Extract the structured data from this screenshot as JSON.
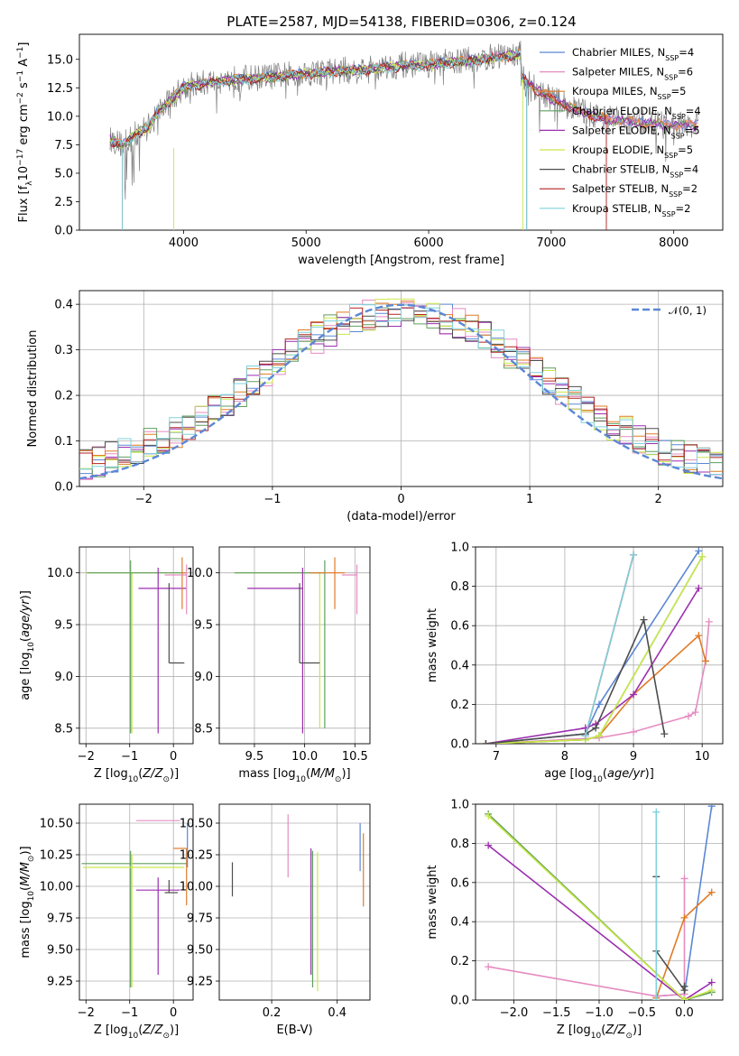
{
  "figure": {
    "title": "PLATE=2587, MJD=54138, FIBERID=0306, z=0.124"
  },
  "colors": {
    "Chabrier MILES": "#5b87d4",
    "Salpeter MILES": "#e58bc0",
    "Kroupa MILES": "#e07b27",
    "Chabrier ELODIE": "#5f9e5f",
    "Salpeter ELODIE": "#9c2fb0",
    "Kroupa ELODIE": "#c9e84a",
    "Chabrier STELIB": "#4d4d4d",
    "Salpeter STELIB": "#b22222",
    "Kroupa STELIB": "#7fd1dd",
    "gaussian": "#5b87d4",
    "grid": "#b0b0b0"
  },
  "chart_data": [
    {
      "id": "spectrum",
      "type": "line",
      "title": "PLATE=2587, MJD=54138, FIBERID=0306, z=0.124",
      "xlabel": "wavelength [Angstrom, rest frame]",
      "ylabel": "Flux [f_λ 10^-17 erg cm^-2 s^-1 A^-1]",
      "xlim": [
        3150,
        8400
      ],
      "ylim": [
        0,
        17.2
      ],
      "xticks": [
        4000,
        5000,
        6000,
        7000,
        8000
      ],
      "yticks": [
        0.0,
        2.5,
        5.0,
        7.5,
        10.0,
        12.5,
        15.0
      ],
      "grid": false,
      "legend_position": "top-right",
      "legend": [
        {
          "name": "Chabrier MILES",
          "nssp": "4"
        },
        {
          "name": "Salpeter MILES",
          "nssp": "6"
        },
        {
          "name": "Kroupa MILES",
          "nssp": "5"
        },
        {
          "name": "Chabrier ELODIE",
          "nssp": "4"
        },
        {
          "name": "Salpeter ELODIE",
          "nssp": "5"
        },
        {
          "name": "Kroupa ELODIE",
          "nssp": "5"
        },
        {
          "name": "Chabrier STELIB",
          "nssp": "4"
        },
        {
          "name": "Salpeter STELIB",
          "nssp": "2"
        },
        {
          "name": "Kroupa STELIB",
          "nssp": "2"
        }
      ],
      "data_continuum": {
        "x": [
          3400,
          3500,
          3600,
          3700,
          3800,
          3900,
          4000,
          4200,
          4400,
          4600,
          4800,
          5000,
          5200,
          5400,
          5600,
          5800,
          6000,
          6200,
          6400,
          6600,
          6750
        ],
        "y": [
          8.0,
          7.5,
          8.5,
          9.0,
          10.5,
          11.5,
          12.6,
          13.0,
          13.3,
          13.4,
          13.6,
          13.8,
          14.0,
          14.1,
          14.3,
          14.5,
          14.6,
          14.8,
          15.0,
          15.3,
          15.5
        ]
      },
      "red_model_tail": {
        "x": [
          6750,
          6900,
          7000,
          7200,
          7400,
          7600,
          7800,
          8000,
          8200
        ],
        "y": [
          13.5,
          12.3,
          11.6,
          10.6,
          9.9,
          9.6,
          9.4,
          9.3,
          9.2
        ]
      },
      "dropout_edges": {
        "Chabrier STELIB": [
          3500,
          6800
        ],
        "Salpeter STELIB": [
          3500,
          7450
        ],
        "Kroupa STELIB": [
          3500,
          6800
        ],
        "Kroupa ELODIE": [
          3920,
          6770
        ]
      }
    },
    {
      "id": "residuals",
      "type": "histogram",
      "xlabel": "(data-model)/error",
      "ylabel": "Normed distribution",
      "xlim": [
        -2.5,
        2.5
      ],
      "ylim": [
        0,
        0.43
      ],
      "xticks": [
        -2,
        -1,
        0,
        1,
        2
      ],
      "yticks": [
        0.0,
        0.1,
        0.2,
        0.3,
        0.4
      ],
      "grid": true,
      "legend_position": "top-right",
      "legend": [
        "𝒩(0, 1)"
      ],
      "bin_width": 0.1
    },
    {
      "id": "age_vs_Z",
      "type": "errorbar",
      "xlabel": "Z [log10(Z/Z⊙)]",
      "ylabel": "age [log10(age/yr)]",
      "xlim": [
        -2.15,
        0.45
      ],
      "ylim": [
        8.35,
        10.25
      ],
      "xticks": [
        -2,
        -1,
        0
      ],
      "yticks": [
        8.5,
        9.0,
        9.5,
        10.0
      ],
      "grid": true,
      "points": [
        {
          "series": "Kroupa ELODIE",
          "x": -0.95,
          "xerr": [
            1.05,
            1.25
          ],
          "y": 10.0,
          "yerr": [
            1.55,
            0.0
          ]
        },
        {
          "series": "Chabrier ELODIE",
          "x": -0.98,
          "xerr": [
            1.0,
            1.2
          ],
          "y": 10.0,
          "yerr": [
            1.55,
            0.12
          ]
        },
        {
          "series": "Salpeter ELODIE",
          "x": -0.35,
          "xerr": [
            0.45,
            0.65
          ],
          "y": 9.85,
          "yerr": [
            1.4,
            0.2
          ]
        },
        {
          "series": "Chabrier STELIB",
          "x": -0.1,
          "xerr": [
            0.0,
            0.35
          ],
          "y": 9.13,
          "yerr": [
            0.0,
            0.77
          ]
        },
        {
          "series": "Kroupa MILES",
          "x": 0.2,
          "xerr": [
            0.0,
            0.1
          ],
          "y": 10.0,
          "yerr": [
            0.35,
            0.15
          ]
        },
        {
          "series": "Salpeter MILES",
          "x": 0.3,
          "xerr": [
            0.5,
            0.0
          ],
          "y": 9.98,
          "yerr": [
            0.38,
            0.1
          ]
        }
      ]
    },
    {
      "id": "age_vs_mass",
      "type": "errorbar",
      "xlabel": "mass [log10(M/M⊙)]",
      "ylabel": "",
      "xlim": [
        9.15,
        10.65
      ],
      "ylim": [
        8.35,
        10.25
      ],
      "xticks": [
        9.5,
        10.0,
        10.5
      ],
      "yticks": [
        8.5,
        9.0,
        9.5,
        10.0
      ],
      "grid": true,
      "points": [
        {
          "series": "Kroupa ELODIE",
          "x": 10.15,
          "xerr": [
            0.85,
            0.0
          ],
          "y": 10.0,
          "yerr": [
            1.5,
            0.0
          ]
        },
        {
          "series": "Chabrier ELODIE",
          "x": 10.2,
          "xerr": [
            0.9,
            0.0
          ],
          "y": 10.0,
          "yerr": [
            1.5,
            0.12
          ]
        },
        {
          "series": "Salpeter ELODIE",
          "x": 9.98,
          "xerr": [
            0.55,
            0.0
          ],
          "y": 9.85,
          "yerr": [
            1.4,
            0.2
          ]
        },
        {
          "series": "Chabrier STELIB",
          "x": 9.95,
          "xerr": [
            0.0,
            0.2
          ],
          "y": 9.13,
          "yerr": [
            0.0,
            0.77
          ]
        },
        {
          "series": "Kroupa MILES",
          "x": 10.3,
          "xerr": [
            0.25,
            0.1
          ],
          "y": 10.0,
          "yerr": [
            0.35,
            0.15
          ]
        },
        {
          "series": "Salpeter MILES",
          "x": 10.52,
          "xerr": [
            0.15,
            0.0
          ],
          "y": 9.98,
          "yerr": [
            0.38,
            0.1
          ]
        }
      ]
    },
    {
      "id": "weight_vs_age",
      "type": "line",
      "xlabel": "age [log10(age/yr)]",
      "ylabel": "mass weight",
      "xlim": [
        6.7,
        10.3
      ],
      "ylim": [
        0,
        1.0
      ],
      "xticks": [
        7,
        8,
        9,
        10
      ],
      "yticks": [
        0.0,
        0.2,
        0.4,
        0.6,
        0.8,
        1.0
      ],
      "grid": true,
      "series": [
        {
          "name": "Chabrier MILES",
          "x": [
            6.85,
            8.3,
            8.5,
            9.95
          ],
          "y": [
            0.0,
            0.05,
            0.2,
            0.98
          ]
        },
        {
          "name": "Salpeter MILES",
          "x": [
            6.85,
            8.5,
            9.0,
            9.8,
            9.9,
            10.05,
            10.1
          ],
          "y": [
            0.0,
            0.03,
            0.06,
            0.14,
            0.16,
            0.42,
            0.62
          ]
        },
        {
          "name": "Kroupa MILES",
          "x": [
            6.85,
            8.3,
            8.5,
            9.0,
            9.95,
            10.05
          ],
          "y": [
            0.0,
            0.02,
            0.04,
            0.25,
            0.55,
            0.42
          ]
        },
        {
          "name": "Chabrier ELODIE",
          "x": [
            6.85,
            8.3,
            8.5,
            10.0
          ],
          "y": [
            0.0,
            0.02,
            0.04,
            0.95
          ]
        },
        {
          "name": "Salpeter ELODIE",
          "x": [
            6.85,
            8.3,
            8.45,
            9.0,
            9.95
          ],
          "y": [
            0.0,
            0.08,
            0.1,
            0.25,
            0.79
          ]
        },
        {
          "name": "Kroupa ELODIE",
          "x": [
            6.85,
            8.3,
            8.5,
            10.0
          ],
          "y": [
            0.0,
            0.02,
            0.04,
            0.95
          ]
        },
        {
          "name": "Chabrier STELIB",
          "x": [
            6.85,
            8.3,
            8.45,
            9.15,
            9.45
          ],
          "y": [
            0.0,
            0.05,
            0.08,
            0.63,
            0.05
          ]
        },
        {
          "name": "Salpeter STELIB",
          "x": [
            8.3,
            9.0
          ],
          "y": [
            0.04,
            0.96
          ]
        },
        {
          "name": "Kroupa STELIB",
          "x": [
            8.3,
            9.0
          ],
          "y": [
            0.04,
            0.96
          ]
        }
      ]
    },
    {
      "id": "mass_vs_Z",
      "type": "errorbar",
      "xlabel": "Z [log10(Z/Z⊙)]",
      "ylabel": "mass [log10(M/M⊙)]",
      "xlim": [
        -2.15,
        0.45
      ],
      "ylim": [
        9.1,
        10.65
      ],
      "xticks": [
        -2,
        -1,
        0
      ],
      "yticks": [
        9.25,
        9.5,
        9.75,
        10.0,
        10.25,
        10.5
      ],
      "grid": true,
      "points": [
        {
          "series": "Chabrier ELODIE",
          "x": -0.98,
          "xerr": [
            1.12,
            1.3
          ],
          "y": 10.18,
          "yerr": [
            0.98,
            0.1
          ]
        },
        {
          "series": "Kroupa ELODIE",
          "x": -0.95,
          "xerr": [
            1.12,
            1.2
          ],
          "y": 10.15,
          "yerr": [
            0.95,
            0.1
          ]
        },
        {
          "series": "Salpeter ELODIE",
          "x": -0.35,
          "xerr": [
            0.5,
            0.5
          ],
          "y": 9.97,
          "yerr": [
            0.67,
            0.1
          ]
        },
        {
          "series": "Chabrier STELIB",
          "x": -0.1,
          "xerr": [
            0.1,
            0.2
          ],
          "y": 9.95,
          "yerr": [
            0.0,
            0.1
          ]
        },
        {
          "series": "Salpeter MILES",
          "x": 0.1,
          "xerr": [
            0.95,
            0.05
          ],
          "y": 10.52,
          "yerr": [
            0.0,
            0.0
          ]
        },
        {
          "series": "Kroupa MILES",
          "x": 0.3,
          "xerr": [
            0.3,
            0.0
          ],
          "y": 10.3,
          "yerr": [
            0.45,
            0.0
          ]
        },
        {
          "series": "Chabrier MILES",
          "x": 0.32,
          "xerr": [
            0.0,
            0.0
          ],
          "y": 10.3,
          "yerr": [
            0.15,
            0.2
          ]
        }
      ]
    },
    {
      "id": "mass_vs_EBV",
      "type": "errorbar",
      "xlabel": "E(B-V)",
      "ylabel": "",
      "xlim": [
        0.04,
        0.5
      ],
      "ylim": [
        9.1,
        10.65
      ],
      "xticks": [
        0.2,
        0.4
      ],
      "yticks": [
        9.25,
        9.5,
        9.75,
        10.0,
        10.25,
        10.5
      ],
      "grid": true,
      "points": [
        {
          "series": "Chabrier STELIB",
          "x": 0.08,
          "y": 10.05,
          "yerr": [
            0.13,
            0.14
          ]
        },
        {
          "series": "Salpeter MILES",
          "x": 0.25,
          "y": 10.32,
          "yerr": [
            0.25,
            0.25
          ]
        },
        {
          "series": "Salpeter ELODIE",
          "x": 0.32,
          "y": 9.8,
          "yerr": [
            0.5,
            0.5
          ]
        },
        {
          "series": "Chabrier ELODIE",
          "x": 0.325,
          "y": 9.75,
          "yerr": [
            0.55,
            0.53
          ]
        },
        {
          "series": "Kroupa ELODIE",
          "x": 0.34,
          "y": 9.72,
          "yerr": [
            0.55,
            0.55
          ]
        },
        {
          "series": "Chabrier MILES",
          "x": 0.47,
          "y": 10.3,
          "yerr": [
            0.18,
            0.2
          ]
        },
        {
          "series": "Kroupa MILES",
          "x": 0.48,
          "y": 10.12,
          "yerr": [
            0.28,
            0.3
          ]
        }
      ]
    },
    {
      "id": "weight_vs_Z",
      "type": "line",
      "xlabel": "Z [log10(Z/Z⊙)]",
      "ylabel": "mass weight",
      "xlim": [
        -2.45,
        0.45
      ],
      "ylim": [
        0,
        1.0
      ],
      "xticks": [
        -2.0,
        -1.5,
        -1.0,
        -0.5,
        0.0
      ],
      "yticks": [
        0.0,
        0.2,
        0.4,
        0.6,
        0.8,
        1.0
      ],
      "grid": true,
      "series": [
        {
          "name": "Chabrier MILES",
          "x": [
            -0.33,
            0.0,
            0.32
          ],
          "y": [
            0.02,
            0.03,
            0.99
          ]
        },
        {
          "name": "Salpeter MILES",
          "x": [
            -2.3,
            -0.33,
            0.0,
            0.0
          ],
          "y": [
            0.17,
            0.02,
            0.03,
            0.62
          ]
        },
        {
          "name": "Kroupa MILES",
          "x": [
            -0.33,
            0.0,
            0.32
          ],
          "y": [
            0.01,
            0.42,
            0.55
          ]
        },
        {
          "name": "Chabrier ELODIE",
          "x": [
            -2.3,
            0.0,
            0.32
          ],
          "y": [
            0.95,
            0.0,
            0.04
          ]
        },
        {
          "name": "Salpeter ELODIE",
          "x": [
            -2.3,
            0.0,
            0.32
          ],
          "y": [
            0.79,
            0.0,
            0.09
          ]
        },
        {
          "name": "Kroupa ELODIE",
          "x": [
            -2.3,
            0.0,
            0.32
          ],
          "y": [
            0.94,
            0.0,
            0.05
          ]
        },
        {
          "name": "Chabrier STELIB",
          "x": [
            -0.33,
            -0.33,
            0.0,
            0.0
          ],
          "y": [
            0.63,
            0.25,
            0.05,
            0.07
          ]
        },
        {
          "name": "Kroupa STELIB",
          "x": [
            -0.33,
            -0.33
          ],
          "y": [
            0.0,
            0.96
          ]
        }
      ]
    }
  ]
}
